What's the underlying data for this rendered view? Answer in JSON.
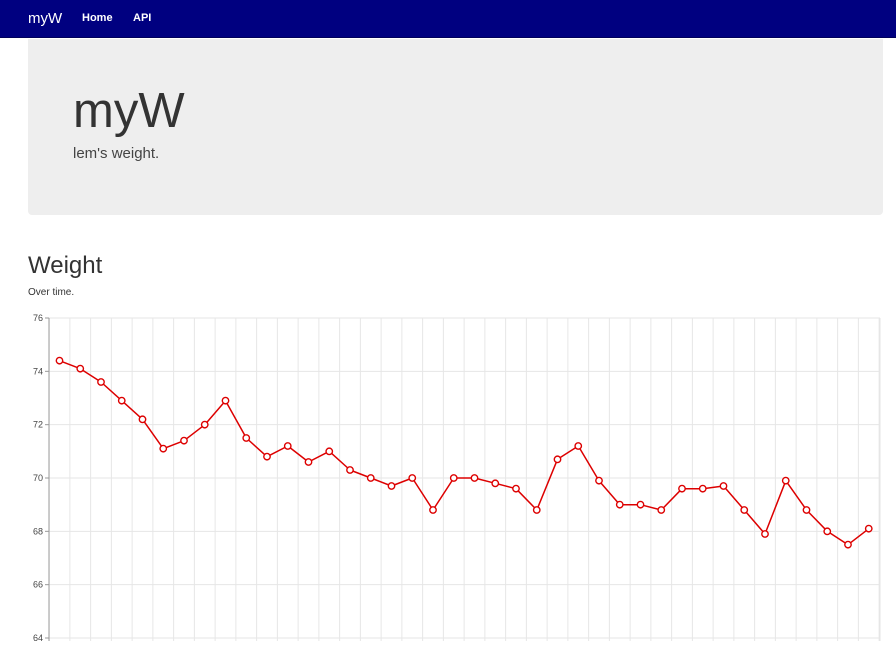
{
  "navbar": {
    "brand": "myW",
    "links": [
      {
        "label": "Home"
      },
      {
        "label": "API"
      }
    ],
    "background": "#000080"
  },
  "jumbotron": {
    "title": "myW",
    "subtitle": "lem's weight."
  },
  "section": {
    "title": "Weight",
    "subtitle": "Over time."
  },
  "chart_data": {
    "type": "line",
    "title": "",
    "xlabel": "",
    "ylabel": "",
    "ylim": [
      64,
      76
    ],
    "y_ticks": [
      64,
      66,
      68,
      70,
      72,
      74,
      76
    ],
    "grid": true,
    "series": [
      {
        "color": "#dd0000",
        "values": [
          74.4,
          74.1,
          73.6,
          72.9,
          72.2,
          71.1,
          71.4,
          72.0,
          72.9,
          71.5,
          70.8,
          71.2,
          70.6,
          71.0,
          70.3,
          70.0,
          69.7,
          70.0,
          68.8,
          70.0,
          70.0,
          69.8,
          69.6,
          68.8,
          70.7,
          71.2,
          69.9,
          69.0,
          69.0,
          68.8,
          69.6,
          69.6,
          69.7,
          68.8,
          67.9,
          69.9,
          68.8,
          68.0,
          67.5,
          68.1
        ]
      }
    ]
  }
}
